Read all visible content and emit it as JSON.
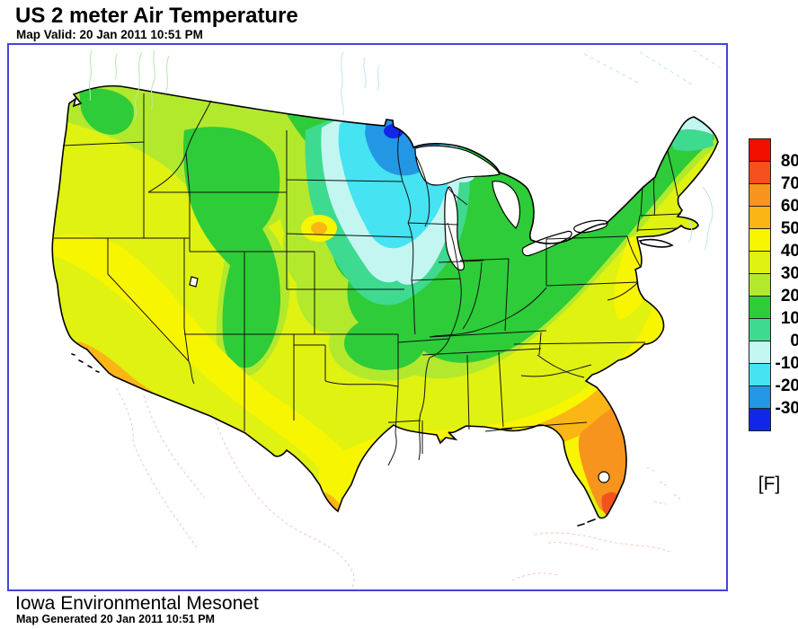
{
  "header": {
    "title": "US 2 meter Air Temperature",
    "subtitle": "Map Valid: 20 Jan 2011 10:51 PM"
  },
  "footer": {
    "source": "Iowa Environmental Mesonet",
    "generated": "Map Generated 20 Jan 2011 10:51 PM"
  },
  "legend": {
    "unit_label": "[F]",
    "ticks": [
      "80",
      "70",
      "60",
      "50",
      "40",
      "30",
      "20",
      "10",
      "0",
      "-10",
      "-20",
      "-30"
    ],
    "bands": [
      {
        "range": "above 80",
        "color": "#f10f00"
      },
      {
        "range": "70 to 80",
        "color": "#f4511e"
      },
      {
        "range": "60 to 70",
        "color": "#f7941e"
      },
      {
        "range": "50 to 60",
        "color": "#fbb616"
      },
      {
        "range": "40 to 50",
        "color": "#f8f501"
      },
      {
        "range": "30 to 40",
        "color": "#dff211"
      },
      {
        "range": "20 to 30",
        "color": "#b2e92d"
      },
      {
        "range": "10 to 20",
        "color": "#2ecc38"
      },
      {
        "range": "0 to 10",
        "color": "#3eda8f"
      },
      {
        "range": "-10 to 0",
        "color": "#c3f6f1"
      },
      {
        "range": "-20 to -10",
        "color": "#46e3f2"
      },
      {
        "range": "-30 to -20",
        "color": "#2397e3"
      },
      {
        "range": "below -30",
        "color": "#1126e8"
      }
    ]
  },
  "map": {
    "frame_color": "#4444dd",
    "outline_colors": {
      "us_border": "#000000",
      "canada_coast": "#b5e7ab",
      "water_boundary": "#bfe4f0",
      "mexico_coast": "#f2c6c0"
    },
    "region_bands_F": {
      "pacific_northwest": "10 to 30",
      "california_central": "40 to 50",
      "southern_california_coast": "50 to 60",
      "desert_southwest_arizona": "50 to 60",
      "northern_rockies_montana": "10 to 20",
      "nebraska_warm_spot": "50 to 60",
      "eastern_north_dakota": "-30 to -20",
      "northern_minnesota": "below -30",
      "minnesota_wisconsin": "-20 to 0",
      "iowa_upper_midwest": "0 to 10",
      "great_lakes_ohio_valley": "10 to 20",
      "texas_oklahoma_interior": "30 to 40",
      "south_texas_tip": "50 to 60",
      "gulf_coast_fringe": "50 to 60",
      "southeast_atlantic": "40 to 50",
      "south_georgia_north_florida": "50 to 60",
      "florida_peninsula": "60 to 70",
      "south_florida_tip": "70 to 80",
      "northeast_new_england": "10 to 20",
      "northern_maine": "-10 to 0",
      "mid_atlantic_coast": "40 to 50"
    }
  }
}
